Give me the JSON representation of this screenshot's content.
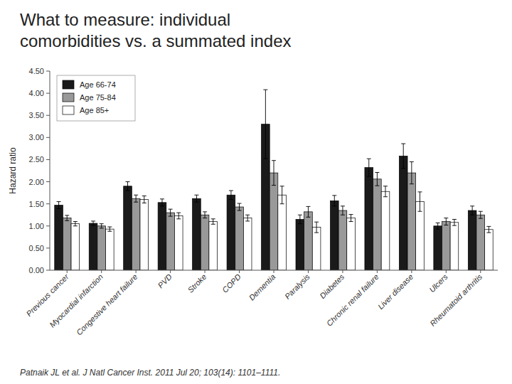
{
  "chart_data": {
    "type": "bar",
    "title": "What to measure: individual\ncomorbidities vs. a summated index",
    "annotations": [
      "Patnaik JL et al. J Natl Cancer Inst. 2011 Jul 20; 103(14): 1101–1111."
    ],
    "y_label": "Hazard ratio",
    "categories": [
      "Previous cancer",
      "Myocardial infarction",
      "Congestive heart failure",
      "PVD",
      "Stroke",
      "COPD",
      "Dementia",
      "Paralysis",
      "Diabetes",
      "Chronic renal failure",
      "Liver disease",
      "Ulcers",
      "Rheumatoid arthritis"
    ],
    "series": [
      {
        "name": "Age 66-74",
        "color": "#1a1a1a",
        "values": [
          1.47,
          1.06,
          1.9,
          1.53,
          1.62,
          1.7,
          3.3,
          1.15,
          1.57,
          2.32,
          2.58,
          1.0,
          1.35
        ],
        "errors_low": [
          0.08,
          0.05,
          0.1,
          0.08,
          0.08,
          0.1,
          0.78,
          0.1,
          0.12,
          0.2,
          0.28,
          0.07,
          0.1
        ],
        "errors_high": [
          0.08,
          0.05,
          0.1,
          0.08,
          0.08,
          0.1,
          0.78,
          0.1,
          0.12,
          0.2,
          0.28,
          0.07,
          0.1
        ]
      },
      {
        "name": "Age 75-84",
        "color": "#999999",
        "values": [
          1.18,
          1.0,
          1.62,
          1.3,
          1.25,
          1.43,
          2.2,
          1.32,
          1.35,
          2.06,
          2.2,
          1.1,
          1.25
        ],
        "errors_low": [
          0.06,
          0.05,
          0.08,
          0.08,
          0.07,
          0.08,
          0.28,
          0.12,
          0.1,
          0.15,
          0.25,
          0.08,
          0.08
        ],
        "errors_high": [
          0.06,
          0.05,
          0.08,
          0.08,
          0.07,
          0.08,
          0.28,
          0.12,
          0.1,
          0.15,
          0.25,
          0.08,
          0.08
        ]
      },
      {
        "name": "Age 85+",
        "color": "#ffffff",
        "values": [
          1.05,
          0.93,
          1.6,
          1.23,
          1.1,
          1.18,
          1.7,
          0.97,
          1.18,
          1.78,
          1.55,
          1.08,
          0.92
        ],
        "errors_low": [
          0.05,
          0.05,
          0.08,
          0.07,
          0.06,
          0.07,
          0.2,
          0.12,
          0.08,
          0.12,
          0.22,
          0.07,
          0.07
        ],
        "errors_high": [
          0.05,
          0.05,
          0.08,
          0.07,
          0.06,
          0.07,
          0.2,
          0.12,
          0.08,
          0.12,
          0.22,
          0.07,
          0.07
        ]
      }
    ],
    "ylim": [
      0.0,
      4.5
    ],
    "yticks": [
      {
        "value": 0.0,
        "label": "0.00"
      },
      {
        "value": 0.5,
        "label": "0.50"
      },
      {
        "value": 1.0,
        "label": "1.00"
      },
      {
        "value": 1.5,
        "label": "1.50"
      },
      {
        "value": 2.0,
        "label": "2.00"
      },
      {
        "value": 2.5,
        "label": "2.50"
      },
      {
        "value": 3.0,
        "label": "3.00"
      },
      {
        "value": 3.5,
        "label": "3.50"
      },
      {
        "value": 4.0,
        "label": "4.00"
      },
      {
        "value": 4.5,
        "label": "4.50"
      }
    ],
    "legend": "upper left",
    "grid": false
  }
}
